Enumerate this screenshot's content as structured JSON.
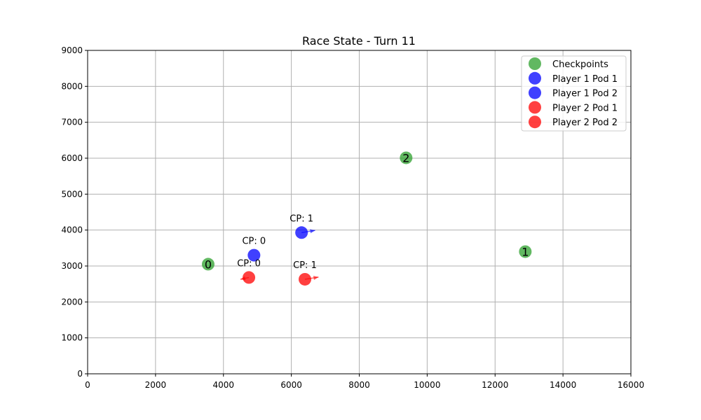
{
  "chart_data": {
    "type": "scatter",
    "title": "Race State - Turn 11",
    "xlim": [
      0,
      16000
    ],
    "ylim": [
      0,
      9000
    ],
    "x_ticks": [
      0,
      2000,
      4000,
      6000,
      8000,
      10000,
      12000,
      14000,
      16000
    ],
    "y_ticks": [
      0,
      1000,
      2000,
      3000,
      4000,
      5000,
      6000,
      7000,
      8000,
      9000
    ],
    "grid": true,
    "legend_position": "top-right",
    "series": [
      {
        "name": "Checkpoints",
        "color": "#2ca02c",
        "points": [
          {
            "x": 3550,
            "y": 3050,
            "label": "0"
          },
          {
            "x": 12890,
            "y": 3400,
            "label": "1"
          },
          {
            "x": 9380,
            "y": 6010,
            "label": "2"
          }
        ]
      },
      {
        "name": "Player 1 Pod 1",
        "color": "#0000ff",
        "points": [
          {
            "x": 6300,
            "y": 3930,
            "annotation": "CP: 1",
            "heading": {
              "dx": 400,
              "dy": 60
            }
          }
        ]
      },
      {
        "name": "Player 1 Pod 2",
        "color": "#0000ff",
        "points": [
          {
            "x": 4900,
            "y": 3300,
            "annotation": "CP: 0"
          }
        ]
      },
      {
        "name": "Player 2 Pod 1",
        "color": "#ff0000",
        "points": [
          {
            "x": 4750,
            "y": 2680,
            "annotation": "CP: 0",
            "heading": {
              "dx": -250,
              "dy": -50
            }
          }
        ]
      },
      {
        "name": "Player 2 Pod 2",
        "color": "#ff0000",
        "points": [
          {
            "x": 6400,
            "y": 2630,
            "annotation": "CP: 1",
            "heading": {
              "dx": 400,
              "dy": 60
            }
          }
        ]
      }
    ]
  }
}
